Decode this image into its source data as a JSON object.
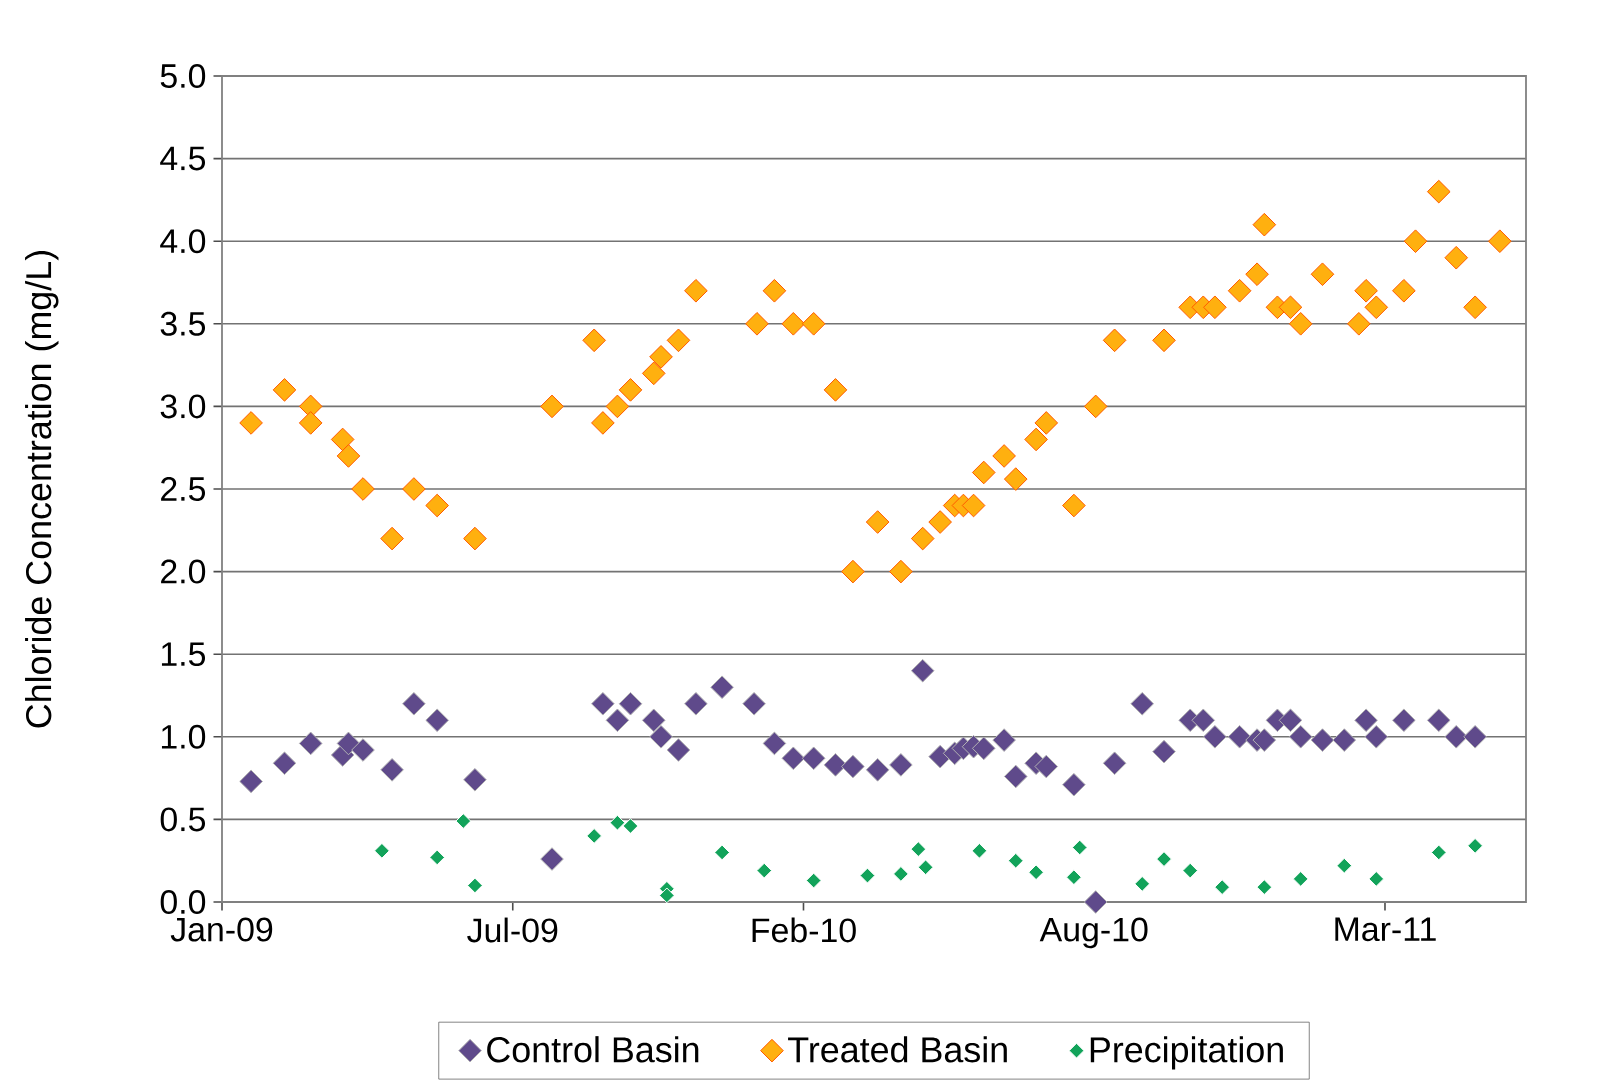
{
  "chart_data": {
    "type": "scatter",
    "ylabel": "Chloride Concentration (mg/L)",
    "marker": "diamond",
    "grid": "y",
    "legend": "bottom",
    "xlim": [
      "2009-01-01",
      "2011-06-17"
    ],
    "xticks": [
      {
        "value": "2009-01-01",
        "label": "Jan-09"
      },
      {
        "value": "2009-07-20",
        "label": "Jul-09"
      },
      {
        "value": "2010-02-05",
        "label": "Feb-10"
      },
      {
        "value": "2010-08-24",
        "label": "Aug-10"
      },
      {
        "value": "2011-03-12",
        "label": "Mar-11"
      }
    ],
    "ylim": [
      0,
      5
    ],
    "yticks": [
      {
        "value": 0,
        "label": "0.0"
      },
      {
        "value": 0.5,
        "label": "0.5"
      },
      {
        "value": 1,
        "label": "1.0"
      },
      {
        "value": 1.5,
        "label": "1.5"
      },
      {
        "value": 2,
        "label": "2.0"
      },
      {
        "value": 2.5,
        "label": "2.5"
      },
      {
        "value": 3,
        "label": "3.0"
      },
      {
        "value": 3.5,
        "label": "3.5"
      },
      {
        "value": 4,
        "label": "4.0"
      },
      {
        "value": 4.5,
        "label": "4.5"
      },
      {
        "value": 5,
        "label": "5.0"
      }
    ],
    "series": [
      {
        "name": "Control Basin",
        "color": "#5f4a8b",
        "x": [
          "2009-01-21",
          "2009-02-13",
          "2009-03-03",
          "2009-03-25",
          "2009-03-29",
          "2009-04-08",
          "2009-04-28",
          "2009-05-13",
          "2009-05-29",
          "2009-06-24",
          "2009-08-16",
          "2009-09-20",
          "2009-09-30",
          "2009-10-09",
          "2009-10-25",
          "2009-10-30",
          "2009-11-11",
          "2009-11-23",
          "2009-12-11",
          "2010-01-02",
          "2010-01-16",
          "2010-01-29",
          "2010-02-12",
          "2010-02-27",
          "2010-03-11",
          "2010-03-28",
          "2010-04-13",
          "2010-04-28",
          "2010-05-10",
          "2010-05-20",
          "2010-05-26",
          "2010-06-02",
          "2010-06-09",
          "2010-06-23",
          "2010-07-01",
          "2010-07-15",
          "2010-07-22",
          "2010-08-10",
          "2010-08-25",
          "2010-09-07",
          "2010-09-26",
          "2010-10-11",
          "2010-10-29",
          "2010-11-07",
          "2010-11-15",
          "2010-12-02",
          "2010-12-14",
          "2010-12-19",
          "2010-12-28",
          "2011-01-06",
          "2011-01-13",
          "2011-01-28",
          "2011-02-12",
          "2011-02-27",
          "2011-03-06",
          "2011-03-25",
          "2011-04-18",
          "2011-04-30",
          "2011-05-13"
        ],
        "values": [
          0.73,
          0.84,
          0.96,
          0.89,
          0.96,
          0.92,
          0.8,
          1.2,
          1.1,
          0.74,
          0.26,
          1.2,
          1.1,
          1.2,
          1.1,
          1.0,
          0.92,
          1.2,
          1.3,
          1.2,
          0.96,
          0.87,
          0.87,
          0.83,
          0.82,
          0.8,
          0.83,
          1.4,
          0.88,
          0.9,
          0.93,
          0.94,
          0.93,
          0.98,
          0.76,
          0.84,
          0.82,
          0.71,
          0.0,
          0.84,
          1.2,
          0.91,
          1.1,
          1.1,
          1.0,
          1.0,
          0.98,
          0.98,
          1.1,
          1.1,
          1.0,
          0.98,
          0.98,
          1.1,
          1.0,
          1.1,
          1.1,
          1.0,
          1.0
        ]
      },
      {
        "name": "Treated Basin",
        "color": "#ffb00f",
        "x": [
          "2009-01-21",
          "2009-02-13",
          "2009-03-03",
          "2009-03-03",
          "2009-03-25",
          "2009-03-29",
          "2009-04-08",
          "2009-04-28",
          "2009-05-13",
          "2009-05-29",
          "2009-06-24",
          "2009-08-16",
          "2009-09-14",
          "2009-09-20",
          "2009-09-30",
          "2009-10-09",
          "2009-10-25",
          "2009-10-30",
          "2009-11-11",
          "2009-11-23",
          "2010-01-04",
          "2010-01-16",
          "2010-01-29",
          "2010-02-12",
          "2010-02-27",
          "2010-03-11",
          "2010-03-28",
          "2010-04-13",
          "2010-04-28",
          "2010-05-10",
          "2010-05-20",
          "2010-05-26",
          "2010-06-02",
          "2010-06-09",
          "2010-06-23",
          "2010-07-01",
          "2010-07-15",
          "2010-07-22",
          "2010-08-10",
          "2010-08-25",
          "2010-09-07",
          "2010-10-11",
          "2010-10-29",
          "2010-11-07",
          "2010-11-15",
          "2010-12-02",
          "2010-12-14",
          "2010-12-19",
          "2010-12-28",
          "2011-01-06",
          "2011-01-13",
          "2011-01-28",
          "2011-02-22",
          "2011-02-27",
          "2011-03-06",
          "2011-03-25",
          "2011-04-02",
          "2011-04-18",
          "2011-04-30",
          "2011-05-13",
          "2011-05-30"
        ],
        "values": [
          2.9,
          3.1,
          3.0,
          2.9,
          2.8,
          2.7,
          2.5,
          2.2,
          2.5,
          2.4,
          2.2,
          3.0,
          3.4,
          2.9,
          3.0,
          3.1,
          3.2,
          3.3,
          3.4,
          3.7,
          3.5,
          3.7,
          3.5,
          3.5,
          3.1,
          2.0,
          2.3,
          2.0,
          2.2,
          2.3,
          2.4,
          2.4,
          2.4,
          2.6,
          2.7,
          2.56,
          2.8,
          2.9,
          2.4,
          3.0,
          3.4,
          3.4,
          3.6,
          3.6,
          3.6,
          3.7,
          3.8,
          4.1,
          3.6,
          3.6,
          3.5,
          3.8,
          3.5,
          3.7,
          3.6,
          3.7,
          4.0,
          4.3,
          3.9,
          3.6,
          4.0
        ]
      },
      {
        "name": "Precipitation",
        "color": "#12a35a",
        "x": [
          "2009-04-21",
          "2009-05-29",
          "2009-06-16",
          "2009-06-24",
          "2009-09-14",
          "2009-09-30",
          "2009-10-09",
          "2009-11-03",
          "2009-11-03",
          "2009-12-11",
          "2010-01-09",
          "2010-02-12",
          "2010-03-21",
          "2010-04-13",
          "2010-04-25",
          "2010-04-30",
          "2010-06-06",
          "2010-07-01",
          "2010-07-15",
          "2010-08-10",
          "2010-08-14",
          "2010-09-26",
          "2010-10-11",
          "2010-10-29",
          "2010-11-20",
          "2010-12-19",
          "2011-01-13",
          "2011-02-12",
          "2011-03-06",
          "2011-04-18",
          "2011-05-13"
        ],
        "values": [
          0.31,
          0.27,
          0.49,
          0.1,
          0.4,
          0.48,
          0.46,
          0.08,
          0.04,
          0.3,
          0.19,
          0.13,
          0.16,
          0.17,
          0.32,
          0.21,
          0.31,
          0.25,
          0.18,
          0.15,
          0.33,
          0.11,
          0.26,
          0.19,
          0.09,
          0.09,
          0.14,
          0.22,
          0.14,
          0.3,
          0.34
        ]
      }
    ]
  }
}
